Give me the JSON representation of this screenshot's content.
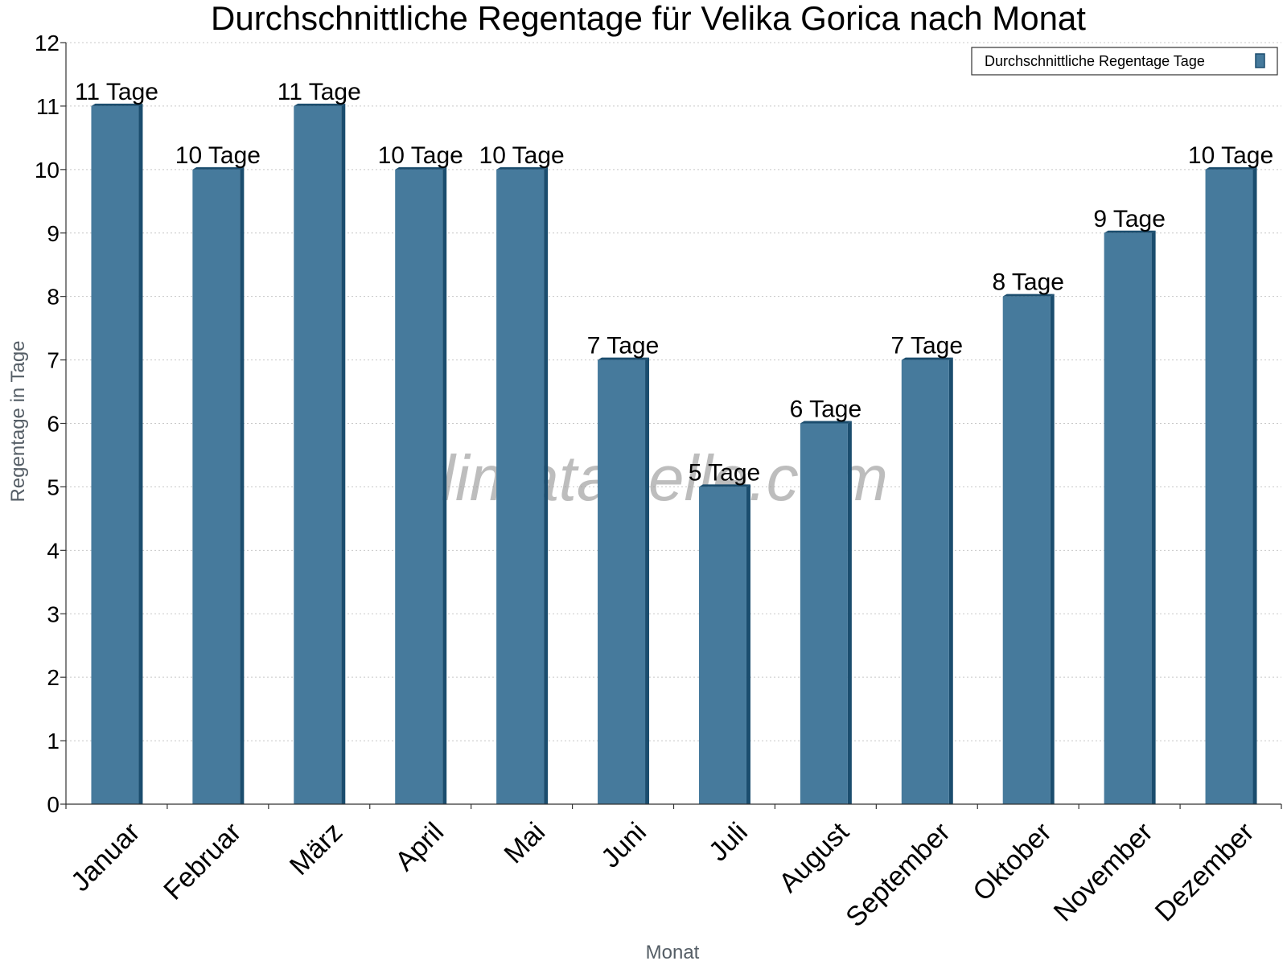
{
  "chart_data": {
    "type": "bar",
    "title": "Durchschnittliche Regentage für Velika Gorica nach Monat",
    "xlabel": "Monat",
    "ylabel": "Regentage in Tage",
    "ylim": [
      0,
      12
    ],
    "yticks": [
      "0",
      "1",
      "2",
      "3",
      "4",
      "5",
      "6",
      "7",
      "8",
      "9",
      "10",
      "11",
      "12"
    ],
    "categories": [
      "Januar",
      "Februar",
      "März",
      "April",
      "Mai",
      "Juni",
      "Juli",
      "August",
      "September",
      "Oktober",
      "November",
      "Dezember"
    ],
    "series": [
      {
        "name": "Durchschnittliche Regentage Tage",
        "values": [
          11,
          10,
          11,
          10,
          10,
          7,
          5,
          6,
          7,
          8,
          9,
          10
        ],
        "data_labels": [
          "11 Tage",
          "10 Tage",
          "11 Tage",
          "10 Tage",
          "10 Tage",
          "7 Tage",
          "5 Tage",
          "6 Tage",
          "7 Tage",
          "8 Tage",
          "9 Tage",
          "10 Tage"
        ],
        "color": "#467a9c"
      }
    ],
    "grid": true,
    "legend_position": "top-right",
    "watermark": "klimatabelle.com"
  },
  "colors": {
    "bar_front": "#467a9c",
    "bar_side": "#1b4d6e",
    "grid": "#c8c8c8",
    "axis": "#333333"
  }
}
